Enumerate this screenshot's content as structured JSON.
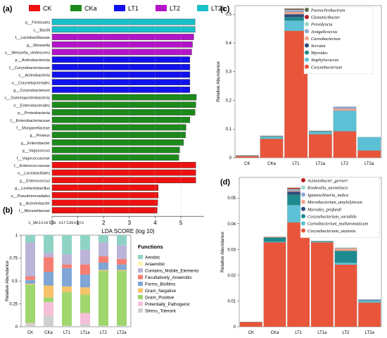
{
  "chart_data": [
    {
      "panel": "(a)",
      "type": "bar",
      "orientation": "horizontal",
      "legend": [
        {
          "name": "CK",
          "color": "#ee1111"
        },
        {
          "name": "CKa",
          "color": "#1b8a1b"
        },
        {
          "name": "LT1",
          "color": "#1111ee"
        },
        {
          "name": "LT2",
          "color": "#b414c8"
        },
        {
          "name": "LT2a",
          "color": "#18c0c8"
        }
      ],
      "bars": [
        {
          "label": "p__Firmicutes",
          "value": 5.55,
          "group": "LT2a"
        },
        {
          "label": "c__Bacilli",
          "value": 5.55,
          "group": "LT2a"
        },
        {
          "label": "f__Lactobacillaceae",
          "value": 5.5,
          "group": "LT2"
        },
        {
          "label": "g__Weissella",
          "value": 5.45,
          "group": "LT2"
        },
        {
          "label": "s__Weissella_viridescens",
          "value": 5.42,
          "group": "LT2"
        },
        {
          "label": "p__Actinobacteriota",
          "value": 5.35,
          "group": "LT1"
        },
        {
          "label": "f__Corynebacteriaceae",
          "value": 5.35,
          "group": "LT1"
        },
        {
          "label": "c__Actinobacteria",
          "value": 5.35,
          "group": "LT1"
        },
        {
          "label": "o__Corynebacteriales",
          "value": 5.35,
          "group": "LT1"
        },
        {
          "label": "g__Corynebacterium",
          "value": 5.35,
          "group": "LT1"
        },
        {
          "label": "c__Gammaproteobacteria",
          "value": 5.6,
          "group": "CKa"
        },
        {
          "label": "o__Enterobacterales",
          "value": 5.58,
          "group": "CKa"
        },
        {
          "label": "p__Proteobacteria",
          "value": 5.55,
          "group": "CKa"
        },
        {
          "label": "f__Enterobacteriaceae",
          "value": 5.35,
          "group": "CKa"
        },
        {
          "label": "f__Morganellaceae",
          "value": 5.2,
          "group": "CKa"
        },
        {
          "label": "g__Proteus",
          "value": 5.18,
          "group": "CKa"
        },
        {
          "label": "g__Enterobacter",
          "value": 5.1,
          "group": "CKa"
        },
        {
          "label": "g__Vagococcus",
          "value": 4.95,
          "group": "CKa"
        },
        {
          "label": "f__Vagococcaceae",
          "value": 4.92,
          "group": "CKa"
        },
        {
          "label": "f__Enterococcaceae",
          "value": 5.58,
          "group": "CK"
        },
        {
          "label": "o__Lactobacillales",
          "value": 5.58,
          "group": "CK"
        },
        {
          "label": "g__Enterococcus",
          "value": 5.58,
          "group": "CK"
        },
        {
          "label": "g__Levilactobacillus",
          "value": 4.12,
          "group": "CK"
        },
        {
          "label": "o__Pseudomonadales",
          "value": 4.12,
          "group": "CK"
        },
        {
          "label": "g__Acinetobacter",
          "value": 4.1,
          "group": "CK"
        },
        {
          "label": "f__Moraxellaceae",
          "value": 4.08,
          "group": "CK"
        }
      ],
      "xlabel": "LDA SCORE (log 10)",
      "xticks": [
        0,
        1,
        2,
        3,
        4,
        5
      ],
      "xlim": [
        0,
        5.9
      ]
    },
    {
      "panel": "(b)",
      "type": "bar",
      "stacked": true,
      "title": "s_Weissella viridesens",
      "ylabel": "Relative Abundance",
      "yticks": [
        0,
        0.25,
        0.5,
        0.75,
        1
      ],
      "ylim": [
        0,
        1
      ],
      "legend_title": "Functions",
      "categories": [
        "CK",
        "CKa",
        "LT1",
        "LT1a",
        "LT2",
        "LT2a"
      ],
      "series": [
        {
          "name": "Stress_Tolerant",
          "color": "#cfcfcf",
          "values": [
            0.03,
            0.12,
            0.01,
            0.03,
            0.01,
            0.01
          ]
        },
        {
          "name": "Potentially_Pathogenic",
          "color": "#f6bfd8",
          "values": [
            0.01,
            0.15,
            0.0,
            0.12,
            0.0,
            0.0
          ]
        },
        {
          "name": "Gram_Positive",
          "color": "#9fd66e",
          "values": [
            0.42,
            0.05,
            0.37,
            0.2,
            0.6,
            0.6
          ]
        },
        {
          "name": "Gram_Negative",
          "color": "#f7c26a",
          "values": [
            0.01,
            0.13,
            0.06,
            0.08,
            0.01,
            0.01
          ]
        },
        {
          "name": "Forms_Biofilms",
          "color": "#7fa6d4",
          "values": [
            0.04,
            0.15,
            0.2,
            0.14,
            0.08,
            0.06
          ]
        },
        {
          "name": "Facultatively_Anaerobic",
          "color": "#f57e72",
          "values": [
            0.04,
            0.16,
            0.04,
            0.11,
            0.07,
            0.06
          ]
        },
        {
          "name": "Contains_Mobile_Elements",
          "color": "#bcb3d9",
          "values": [
            0.37,
            0.05,
            0.11,
            0.16,
            0.15,
            0.15
          ]
        },
        {
          "name": "Anaerobic",
          "color": "#fbf5b0",
          "values": [
            0.0,
            0.0,
            0.0,
            0.0,
            0.0,
            0.0
          ]
        },
        {
          "name": "Aerobic",
          "color": "#8fd3c5",
          "values": [
            0.08,
            0.19,
            0.21,
            0.16,
            0.08,
            0.11
          ]
        }
      ]
    },
    {
      "panel": "(c)",
      "type": "bar",
      "stacked": true,
      "ylabel": "Relative Abundance",
      "yticks": [
        0,
        0.1,
        0.2,
        0.3,
        0.4,
        0.5
      ],
      "ylim": [
        0,
        0.53
      ],
      "categories": [
        "CK",
        "CKa",
        "LT1",
        "LT1a",
        "LT2",
        "LT2a"
      ],
      "series": [
        {
          "name": "Corynebacterium",
          "color": "#e8553a",
          "values": [
            0.006,
            0.066,
            0.442,
            0.082,
            0.092,
            0.025
          ]
        },
        {
          "name": "Staphylococcus",
          "color": "#5cc1d4",
          "values": [
            0.002,
            0.007,
            0.036,
            0.008,
            0.072,
            0.047
          ]
        },
        {
          "name": "Myroides",
          "color": "#1d8a8f",
          "values": [
            0.0,
            0.002,
            0.012,
            0.002,
            0.0,
            0.0
          ]
        },
        {
          "name": "Serratia",
          "color": "#2d4b7a",
          "values": [
            0.0,
            0.0,
            0.01,
            0.0,
            0.0,
            0.0
          ]
        },
        {
          "name": "Carnobacterium",
          "color": "#f3a58e",
          "values": [
            0.001,
            0.002,
            0.008,
            0.001,
            0.007,
            0.0
          ]
        },
        {
          "name": "Jeotgalicoccus",
          "color": "#8fa7d6",
          "values": [
            0.0,
            0.0,
            0.005,
            0.001,
            0.006,
            0.0
          ]
        },
        {
          "name": "Providencia",
          "color": "#9bd8c8",
          "values": [
            0.0,
            0.0,
            0.003,
            0.0,
            0.001,
            0.0
          ]
        },
        {
          "name": "Glutamicibacter",
          "color": "#b62020",
          "values": [
            0.0,
            0.0,
            0.002,
            0.0,
            0.0,
            0.0
          ]
        },
        {
          "name": "Paenochrobactrum",
          "color": "#5b6b43",
          "values": [
            0.0,
            0.0,
            0.002,
            0.0,
            0.0,
            0.0
          ]
        }
      ]
    },
    {
      "panel": "(d)",
      "type": "bar",
      "stacked": true,
      "ylabel": "Relative Abundance",
      "yticks": [
        0,
        0.01,
        0.02,
        0.03,
        0.04,
        0.05
      ],
      "ylim": [
        0,
        0.058
      ],
      "categories": [
        "CK",
        "CKa",
        "LT1",
        "LT1a",
        "LT2",
        "LT2a"
      ],
      "series": [
        {
          "name": "Corynebacterium_stationis",
          "color": "#e8553a",
          "values": [
            0.0018,
            0.0328,
            0.0405,
            0.0328,
            0.0241,
            0.0094
          ]
        },
        {
          "name": "Carnobacterium_maltaromaticum",
          "color": "#5cc1d4",
          "values": [
            0.0001,
            0.0002,
            0.0068,
            0.0003,
            0.0008,
            0.0007
          ]
        },
        {
          "name": "Corynebacterium_variabile",
          "color": "#1d8a8f",
          "values": [
            0.0,
            0.0017,
            0.004,
            0.0002,
            0.0046,
            0.0002
          ]
        },
        {
          "name": "Myroides_profundi",
          "color": "#2d4b7a",
          "values": [
            0.0,
            0.0,
            0.0012,
            0.0,
            0.0,
            0.0
          ]
        },
        {
          "name": "Microbacterium_amylolyticum",
          "color": "#f3a58e",
          "values": [
            0.0,
            0.0003,
            0.0003,
            0.0,
            0.0009,
            0.0
          ]
        },
        {
          "name": "Ignatzschineria_indica",
          "color": "#8fa7d6",
          "values": [
            0.0,
            0.0,
            0.0004,
            0.0,
            0.0001,
            0.0003
          ]
        },
        {
          "name": "Koukoulia_aurantiaca",
          "color": "#9bd8c8",
          "values": [
            0.0,
            0.0,
            0.0003,
            0.0,
            0.0002,
            0.0
          ]
        },
        {
          "name": "Acinetobacter_gerneri",
          "color": "#b62020",
          "values": [
            0.0,
            0.0,
            0.0005,
            0.0,
            0.0,
            0.0
          ]
        }
      ]
    }
  ]
}
